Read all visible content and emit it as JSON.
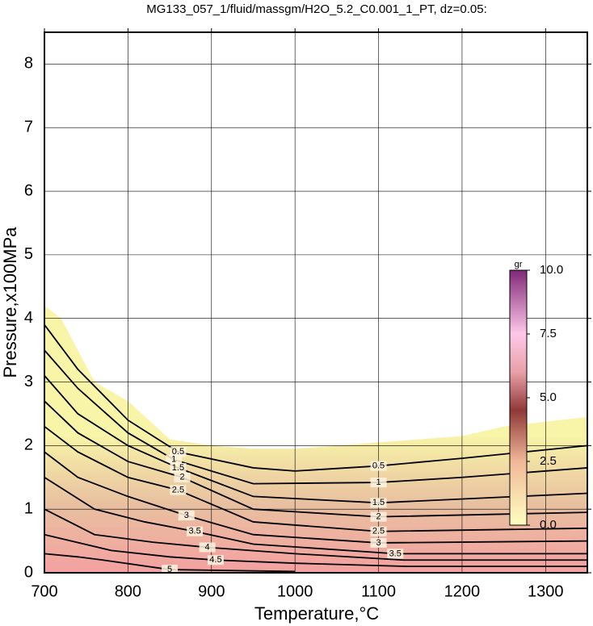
{
  "chart_data": {
    "type": "contour",
    "title": "MG133_057_1/fluid/massgm/H2O_5.2_C0.001_1_PT, dz=0.05:",
    "x_label": "Temperature,°C",
    "y_label": "Pressure,x100MPa",
    "xlim": [
      700,
      1350
    ],
    "ylim": [
      0,
      8.5
    ],
    "xticks": [
      700,
      800,
      900,
      1000,
      1100,
      1200,
      1300
    ],
    "yticks": [
      0,
      1,
      2,
      3,
      4,
      5,
      6,
      7,
      8
    ],
    "grid": true,
    "boundary": {
      "x": [
        700,
        720,
        740,
        760,
        800,
        850,
        900,
        950,
        1000,
        1050,
        1100,
        1200,
        1250,
        1350
      ],
      "y": [
        4.2,
        4.0,
        3.5,
        3.0,
        2.7,
        2.1,
        2.0,
        1.95,
        1.95,
        2.0,
        2.05,
        2.15,
        2.3,
        2.45
      ]
    },
    "contours": [
      {
        "level": 0.5,
        "x": [
          700,
          740,
          800,
          860,
          950,
          1000,
          1100,
          1200,
          1350
        ],
        "y": [
          3.9,
          3.2,
          2.4,
          1.9,
          1.65,
          1.6,
          1.68,
          1.8,
          2.0
        ]
      },
      {
        "level": 1,
        "x": [
          700,
          740,
          800,
          855,
          950,
          1100,
          1200,
          1350
        ],
        "y": [
          3.5,
          2.9,
          2.2,
          1.78,
          1.4,
          1.42,
          1.5,
          1.65
        ]
      },
      {
        "level": 1.5,
        "x": [
          700,
          740,
          800,
          860,
          950,
          1100,
          1350
        ],
        "y": [
          3.1,
          2.5,
          2.0,
          1.65,
          1.2,
          1.1,
          1.25
        ]
      },
      {
        "level": 2,
        "x": [
          700,
          740,
          800,
          865,
          950,
          1100,
          1350
        ],
        "y": [
          2.7,
          2.2,
          1.75,
          1.5,
          1.0,
          0.88,
          0.95
        ]
      },
      {
        "level": 2.5,
        "x": [
          700,
          740,
          800,
          860,
          950,
          1100,
          1350
        ],
        "y": [
          2.3,
          1.9,
          1.5,
          1.3,
          0.8,
          0.65,
          0.7
        ]
      },
      {
        "level": 3,
        "x": [
          700,
          740,
          800,
          870,
          950,
          1100,
          1350
        ],
        "y": [
          1.9,
          1.5,
          1.2,
          0.9,
          0.6,
          0.47,
          0.5
        ]
      },
      {
        "level": 3.5,
        "x": [
          700,
          760,
          820,
          880,
          950,
          1120,
          1350
        ],
        "y": [
          1.5,
          1.0,
          0.8,
          0.65,
          0.45,
          0.3,
          0.3
        ]
      },
      {
        "level": 4,
        "x": [
          700,
          760,
          830,
          895,
          1000,
          1130,
          1350
        ],
        "y": [
          1.0,
          0.6,
          0.48,
          0.4,
          0.3,
          0.2,
          0.2
        ]
      },
      {
        "level": 4.5,
        "x": [
          700,
          780,
          850,
          905,
          1000,
          1135,
          1350
        ],
        "y": [
          0.6,
          0.35,
          0.25,
          0.2,
          0.15,
          0.1,
          0.1
        ]
      },
      {
        "level": 5,
        "x": [
          700,
          740,
          770,
          850,
          1000
        ],
        "y": [
          0.3,
          0.25,
          0.2,
          0.05,
          0.02
        ]
      }
    ],
    "colorbar": {
      "label": "gr",
      "lim": [
        0,
        10
      ],
      "ticks": [
        {
          "value": 0,
          "label": "0.0"
        },
        {
          "value": 2.5,
          "label": "2.5"
        },
        {
          "value": 5,
          "label": "5.0"
        },
        {
          "value": 7.5,
          "label": "7.5"
        },
        {
          "value": 10,
          "label": "10.0"
        }
      ]
    }
  }
}
